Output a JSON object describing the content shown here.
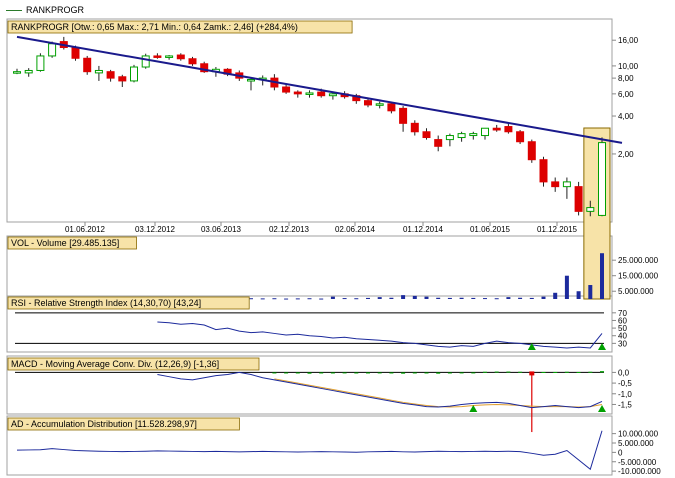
{
  "legend": {
    "label": "RANKPROGR",
    "color": "#2a7a2a"
  },
  "colors": {
    "up": "#00a000",
    "down": "#dd0000",
    "trend": "#1a1a8c",
    "volume": "#1c2a9c",
    "rsi": "#1c2a9c",
    "macd_line": "#1c2a9c",
    "macd_signal": "#e0a030",
    "macd_hist": "#00a000",
    "ad": "#1c2a9c",
    "highlight": "#f7e3a8",
    "highlight_border": "#8a6a00",
    "signal_marker": "#00a000"
  },
  "panels": {
    "price": {
      "label": "RANKPROGR [Otw.: 0,65  Max.: 2,71  Min.: 0,64  Zamk.: 2,46] (+284,4%)"
    },
    "volume": {
      "label": "VOL - Volume [29.485.135]"
    },
    "rsi": {
      "label": "RSI - Relative Strength Index (14,30,70) [43,24]"
    },
    "macd": {
      "label": "MACD - Moving Average Conv. Div. (12,26,9) [-1,36]"
    },
    "ad": {
      "label": "AD - Accumulation Distribution [11.528.298,97]"
    }
  },
  "chart_data": [
    {
      "type": "candlestick",
      "id": "price",
      "log_scale": true,
      "ylim": [
        0.62,
        20
      ],
      "y_ticks": [
        16,
        10,
        8,
        6,
        4,
        2
      ],
      "y_tick_labels": [
        "16,00",
        "10,00",
        "8,00",
        "6,00",
        "4,00",
        "2,00"
      ],
      "x_tick_labels": [
        "01.06.2012",
        "03.12.2012",
        "03.06.2013",
        "02.12.2013",
        "02.06.2014",
        "01.12.2014",
        "01.06.2015",
        "01.12.2015"
      ],
      "candles": [
        {
          "o": 9.0,
          "h": 9.5,
          "l": 8.6,
          "c": 9.0
        },
        {
          "o": 8.8,
          "h": 9.6,
          "l": 8.2,
          "c": 9.2
        },
        {
          "o": 9.2,
          "h": 12.6,
          "l": 9.0,
          "c": 12.0
        },
        {
          "o": 12.0,
          "h": 15.6,
          "l": 11.6,
          "c": 15.0
        },
        {
          "o": 15.6,
          "h": 17.0,
          "l": 13.5,
          "c": 14.0
        },
        {
          "o": 14.0,
          "h": 14.5,
          "l": 11.0,
          "c": 11.5
        },
        {
          "o": 11.5,
          "h": 12.0,
          "l": 8.5,
          "c": 9.0
        },
        {
          "o": 8.8,
          "h": 10.0,
          "l": 7.6,
          "c": 9.2
        },
        {
          "o": 9.0,
          "h": 9.3,
          "l": 7.5,
          "c": 8.0
        },
        {
          "o": 8.2,
          "h": 8.5,
          "l": 6.8,
          "c": 7.6
        },
        {
          "o": 7.6,
          "h": 10.2,
          "l": 7.4,
          "c": 9.8
        },
        {
          "o": 9.8,
          "h": 12.5,
          "l": 9.5,
          "c": 12.0
        },
        {
          "o": 12.0,
          "h": 12.6,
          "l": 11.4,
          "c": 11.8
        },
        {
          "o": 11.8,
          "h": 12.2,
          "l": 11.2,
          "c": 12.0
        },
        {
          "o": 12.2,
          "h": 12.6,
          "l": 11.0,
          "c": 11.4
        },
        {
          "o": 11.4,
          "h": 11.8,
          "l": 10.0,
          "c": 10.4
        },
        {
          "o": 10.4,
          "h": 10.8,
          "l": 8.8,
          "c": 9.0
        },
        {
          "o": 9.0,
          "h": 9.8,
          "l": 8.2,
          "c": 9.4
        },
        {
          "o": 9.4,
          "h": 9.6,
          "l": 8.3,
          "c": 8.6
        },
        {
          "o": 8.8,
          "h": 9.2,
          "l": 7.6,
          "c": 8.0
        },
        {
          "o": 7.6,
          "h": 8.0,
          "l": 6.4,
          "c": 7.8
        },
        {
          "o": 7.8,
          "h": 8.4,
          "l": 7.0,
          "c": 8.0
        },
        {
          "o": 8.0,
          "h": 8.6,
          "l": 6.4,
          "c": 6.8
        },
        {
          "o": 6.8,
          "h": 7.2,
          "l": 6.0,
          "c": 6.2
        },
        {
          "o": 6.2,
          "h": 6.4,
          "l": 5.6,
          "c": 6.0
        },
        {
          "o": 6.0,
          "h": 6.4,
          "l": 5.6,
          "c": 6.1
        },
        {
          "o": 6.2,
          "h": 6.6,
          "l": 5.6,
          "c": 5.8
        },
        {
          "o": 5.8,
          "h": 6.2,
          "l": 5.4,
          "c": 6.0
        },
        {
          "o": 6.0,
          "h": 6.3,
          "l": 5.5,
          "c": 5.7
        },
        {
          "o": 5.8,
          "h": 6.0,
          "l": 5.0,
          "c": 5.3
        },
        {
          "o": 5.3,
          "h": 5.6,
          "l": 4.7,
          "c": 4.9
        },
        {
          "o": 4.9,
          "h": 5.2,
          "l": 4.6,
          "c": 5.0
        },
        {
          "o": 5.0,
          "h": 5.2,
          "l": 4.2,
          "c": 4.4
        },
        {
          "o": 4.6,
          "h": 4.8,
          "l": 3.0,
          "c": 3.5
        },
        {
          "o": 3.5,
          "h": 3.7,
          "l": 2.8,
          "c": 3.0
        },
        {
          "o": 3.0,
          "h": 3.2,
          "l": 2.6,
          "c": 2.7
        },
        {
          "o": 2.6,
          "h": 2.8,
          "l": 2.1,
          "c": 2.3
        },
        {
          "o": 2.6,
          "h": 2.9,
          "l": 2.3,
          "c": 2.8
        },
        {
          "o": 2.7,
          "h": 3.0,
          "l": 2.5,
          "c": 2.9
        },
        {
          "o": 2.8,
          "h": 3.0,
          "l": 2.6,
          "c": 2.9
        },
        {
          "o": 2.8,
          "h": 3.2,
          "l": 2.6,
          "c": 3.2
        },
        {
          "o": 3.2,
          "h": 3.4,
          "l": 3.0,
          "c": 3.1
        },
        {
          "o": 3.3,
          "h": 3.5,
          "l": 2.9,
          "c": 3.0
        },
        {
          "o": 3.0,
          "h": 3.1,
          "l": 2.4,
          "c": 2.5
        },
        {
          "o": 2.5,
          "h": 2.6,
          "l": 1.7,
          "c": 1.8
        },
        {
          "o": 1.8,
          "h": 1.9,
          "l": 1.1,
          "c": 1.2
        },
        {
          "o": 1.2,
          "h": 1.3,
          "l": 1.0,
          "c": 1.1
        },
        {
          "o": 1.1,
          "h": 1.3,
          "l": 0.88,
          "c": 1.2
        },
        {
          "o": 1.1,
          "h": 1.2,
          "l": 0.65,
          "c": 0.7
        },
        {
          "o": 0.7,
          "h": 0.85,
          "l": 0.64,
          "c": 0.75
        },
        {
          "o": 0.65,
          "h": 2.71,
          "l": 0.64,
          "c": 2.46
        }
      ],
      "trendline": [
        [
          0,
          17.0
        ],
        [
          50,
          2.7
        ],
        [
          53,
          2.5
        ]
      ],
      "highlight_last": 2
    },
    {
      "type": "bar",
      "id": "volume",
      "ylim": [
        0,
        38000000
      ],
      "y_ticks": [
        25000000,
        15000000,
        5000000
      ],
      "y_tick_labels": [
        "25.000.000",
        "15.000.000",
        "5.000.000"
      ],
      "values": [
        500000,
        400000,
        300000,
        800000,
        1200000,
        600000,
        500000,
        400000,
        500000,
        300000,
        400000,
        600000,
        500000,
        300000,
        400000,
        500000,
        300000,
        400000,
        300000,
        300000,
        500000,
        400000,
        500000,
        300000,
        400000,
        500000,
        300000,
        1500000,
        600000,
        500000,
        700000,
        1200000,
        800000,
        2500000,
        2000000,
        1500000,
        800000,
        700000,
        800000,
        700000,
        600000,
        500000,
        1200000,
        800000,
        700000,
        1500000,
        4000000,
        15000000,
        5000000,
        9000000,
        29485135
      ]
    },
    {
      "type": "line",
      "id": "rsi",
      "y_ticks": [
        70,
        60,
        50,
        40,
        30
      ],
      "y_tick_labels": [
        "70",
        "60",
        "50",
        "40",
        "30"
      ],
      "ylim": [
        20,
        75
      ],
      "levels": [
        70,
        30
      ],
      "values": [
        null,
        null,
        null,
        null,
        null,
        null,
        null,
        null,
        null,
        null,
        null,
        null,
        58,
        57,
        55,
        56,
        54,
        48,
        50,
        46,
        44,
        45,
        43,
        41,
        42,
        40,
        39,
        37,
        38,
        36,
        35,
        34,
        33,
        31,
        30,
        28,
        26,
        25,
        27,
        26,
        30,
        33,
        31,
        30,
        28,
        26,
        25,
        24,
        25,
        24,
        43
      ],
      "markers": [
        44,
        50
      ]
    },
    {
      "type": "line",
      "id": "macd",
      "y_ticks": [
        0,
        -0.5,
        -1,
        -1.5
      ],
      "y_tick_labels": [
        "0,0",
        "-0,5",
        "-1,0",
        "-1,5"
      ],
      "ylim": [
        -1.9,
        0.3
      ],
      "zero_line": 0,
      "macd": [
        null,
        null,
        null,
        null,
        null,
        null,
        null,
        null,
        null,
        null,
        null,
        null,
        -0.1,
        -0.2,
        -0.3,
        -0.35,
        -0.25,
        -0.15,
        -0.1,
        0.0,
        -0.1,
        -0.25,
        -0.35,
        -0.45,
        -0.55,
        -0.65,
        -0.75,
        -0.85,
        -0.95,
        -1.05,
        -1.15,
        -1.25,
        -1.35,
        -1.45,
        -1.52,
        -1.6,
        -1.62,
        -1.58,
        -1.5,
        -1.45,
        -1.42,
        -1.4,
        -1.45,
        -1.55,
        -1.65,
        -1.6,
        -1.55,
        -1.6,
        -1.65,
        -1.6,
        -1.36
      ],
      "signal": [
        null,
        null,
        null,
        null,
        null,
        null,
        null,
        null,
        null,
        null,
        null,
        null,
        null,
        null,
        null,
        null,
        null,
        null,
        null,
        null,
        null,
        null,
        -0.3,
        -0.4,
        -0.5,
        -0.6,
        -0.7,
        -0.8,
        -0.9,
        -1.0,
        -1.1,
        -1.2,
        -1.3,
        -1.4,
        -1.48,
        -1.55,
        -1.6,
        -1.62,
        -1.6,
        -1.55,
        -1.52,
        -1.5,
        -1.52,
        -1.55,
        -1.58,
        -1.6,
        -1.6,
        -1.6,
        -1.62,
        -1.6,
        -1.5
      ],
      "histogram": [
        null,
        null,
        null,
        null,
        null,
        null,
        null,
        null,
        null,
        null,
        null,
        null,
        null,
        null,
        null,
        null,
        null,
        null,
        null,
        null,
        null,
        null,
        -0.05,
        -0.05,
        -0.05,
        -0.06,
        -0.05,
        -0.05,
        -0.04,
        -0.05,
        -0.05,
        -0.04,
        -0.05,
        -0.06,
        -0.05,
        -0.05,
        -0.06,
        -0.05,
        -0.04,
        -0.04,
        0.03,
        0.04,
        0.04,
        0.03,
        0.03,
        0.02,
        0.02,
        0.03,
        0.02,
        0.03,
        0.06
      ],
      "spike_index": 44,
      "spike_value": -1.2,
      "markers": [
        39,
        50
      ]
    },
    {
      "type": "line",
      "id": "ad",
      "y_ticks": [
        10000000,
        5000000,
        0,
        -5000000,
        -10000000
      ],
      "y_tick_labels": [
        "10.000.000",
        "5.000.000",
        "0",
        "-5.000.000",
        "-10.000.000"
      ],
      "ylim": [
        -11000000,
        13000000
      ],
      "values": [
        1200000,
        1300000,
        1400000,
        2000000,
        1500000,
        1000000,
        800000,
        600000,
        500000,
        400000,
        500000,
        600000,
        800000,
        700000,
        600000,
        500000,
        400000,
        500000,
        400000,
        300000,
        400000,
        500000,
        400000,
        300000,
        200000,
        300000,
        400000,
        300000,
        200000,
        100000,
        300000,
        400000,
        500000,
        300000,
        200000,
        400000,
        600000,
        500000,
        400000,
        500000,
        600000,
        500000,
        600000,
        400000,
        -500000,
        -1500000,
        -1000000,
        1000000,
        -4000000,
        -9000000,
        11528299
      ]
    }
  ]
}
